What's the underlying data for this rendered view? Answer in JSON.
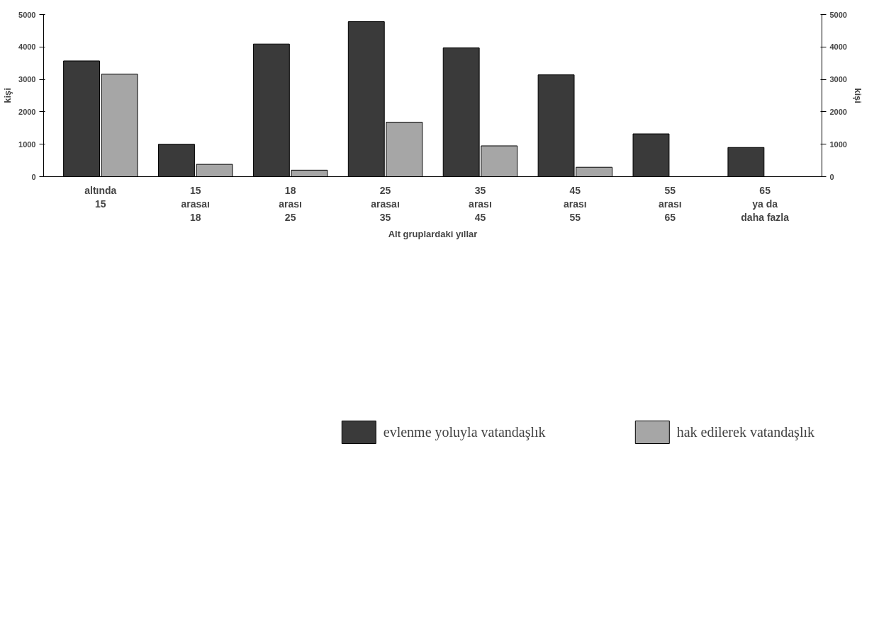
{
  "chart_data": {
    "type": "bar",
    "categories": [
      "altında\n15",
      "15\narasaı\n18",
      "18\narası\n25",
      "25\narasaı\n35",
      "35\narası\n45",
      "45\narası\n55",
      "55\narası\n65",
      "65\nya da\ndaha fazla"
    ],
    "xlabel": "Alt gruplardaki yıllar",
    "ylabel": "kişi",
    "y2label": "kişi",
    "series": [
      {
        "name": "evlenme yoluyla vatandaşlık",
        "color": "#3a3a3a",
        "values": [
          3570,
          1000,
          4090,
          4780,
          3970,
          3140,
          1320,
          900
        ]
      },
      {
        "name": "hak edilerek vatandaşlık",
        "color": "#a6a6a6",
        "values": [
          3160,
          380,
          200,
          1680,
          950,
          290,
          null,
          null
        ]
      }
    ],
    "ylim": [
      0,
      5000
    ],
    "yticks": [
      0,
      1000,
      2000,
      3000,
      4000,
      5000
    ],
    "y2lim": [
      0,
      5000
    ],
    "y2ticks": [
      0,
      1000,
      2000,
      3000,
      4000,
      5000
    ],
    "grid": false,
    "legend": "bottom"
  }
}
